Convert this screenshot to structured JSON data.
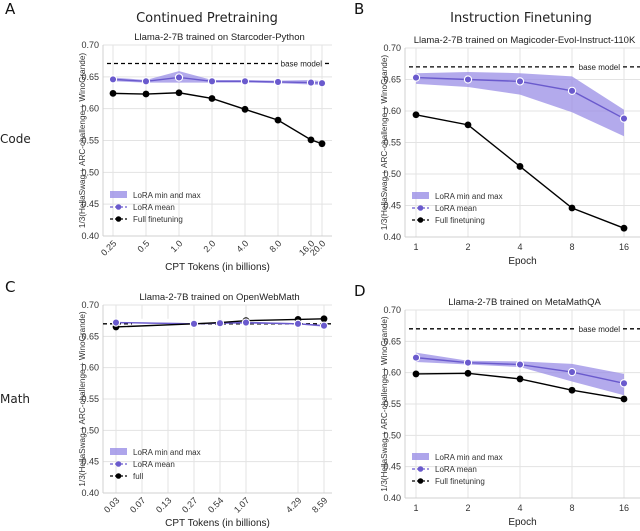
{
  "figure": {
    "row_labels": [
      "Code",
      "Math"
    ],
    "column_titles": [
      "Continued Pretraining",
      "Instruction Finetuning"
    ],
    "panel_letters": [
      "A",
      "B",
      "C",
      "D"
    ],
    "colors": {
      "lora": "#6a5acd",
      "lora_band": "#9a8ee6",
      "full": "#000000",
      "grid": "#e3e3e3"
    }
  },
  "chart_data": [
    {
      "id": "A",
      "type": "line",
      "title": "Llama-2-7B trained on Starcoder-Python",
      "xlabel": "CPT Tokens (in billions)",
      "ylabel": "1/3(HellaSwag + ARC-challenge + WinoGrande)",
      "x_tick_labels": [
        "0.25",
        "0.5",
        "1.0",
        "2.0",
        "4.0",
        "8.0",
        "16.0",
        "20.0"
      ],
      "x_tick_rotated": true,
      "ylim": [
        0.4,
        0.7
      ],
      "y_ticks": [
        "0.40",
        "0.45",
        "0.50",
        "0.55",
        "0.60",
        "0.65",
        "0.70"
      ],
      "grid": true,
      "baseline": {
        "label": "base model",
        "value": 0.671
      },
      "series": [
        {
          "name": "LoRA mean",
          "values": [
            0.646,
            0.643,
            0.649,
            0.643,
            0.643,
            0.642,
            0.641,
            0.64
          ]
        },
        {
          "name": "LoRA min and max",
          "min": [
            0.643,
            0.641,
            0.641,
            0.641,
            0.641,
            0.64,
            0.638,
            0.637
          ],
          "max": [
            0.649,
            0.645,
            0.659,
            0.645,
            0.645,
            0.644,
            0.645,
            0.643
          ]
        },
        {
          "name": "Full finetuning",
          "values": [
            0.624,
            0.623,
            0.625,
            0.616,
            0.599,
            0.582,
            0.551,
            0.545
          ]
        }
      ],
      "legend": [
        "LoRA min and max",
        "LoRA mean",
        "Full finetuning"
      ],
      "legend_position": "bottom-left"
    },
    {
      "id": "B",
      "type": "line",
      "title": "Llama-2-7B trained on Magicoder-Evol-Instruct-110K",
      "xlabel": "Epoch",
      "ylabel": "1/3(HellaSwag + ARC-challenge + WinoGrande)",
      "x_tick_labels": [
        "1",
        "2",
        "4",
        "8",
        "16"
      ],
      "x_tick_rotated": false,
      "ylim": [
        0.4,
        0.7
      ],
      "y_ticks": [
        "0.40",
        "0.45",
        "0.50",
        "0.55",
        "0.60",
        "0.65",
        "0.70"
      ],
      "grid": true,
      "baseline": {
        "label": "base model",
        "value": 0.67
      },
      "series": [
        {
          "name": "LoRA mean",
          "values": [
            0.653,
            0.65,
            0.647,
            0.632,
            0.588
          ]
        },
        {
          "name": "LoRA min and max",
          "min": [
            0.643,
            0.638,
            0.626,
            0.598,
            0.56
          ],
          "max": [
            0.66,
            0.662,
            0.66,
            0.655,
            0.602
          ]
        },
        {
          "name": "Full finetuning",
          "values": [
            0.594,
            0.578,
            0.512,
            0.446,
            0.414
          ]
        }
      ],
      "legend": [
        "LoRA min and max",
        "LoRA mean",
        "Full finetuning"
      ],
      "legend_position": "bottom-left"
    },
    {
      "id": "C",
      "type": "line",
      "title": "Llama-2-7B trained on OpenWebMath",
      "xlabel": "CPT Tokens (in billions)",
      "ylabel": "1/3(HellaSwag + ARC-challenge + WinoGrande)",
      "x_tick_labels": [
        "0.03",
        "0.07",
        "0.13",
        "0.27",
        "0.54",
        "1.07",
        "4.29",
        "8.59"
      ],
      "x_tick_rotated": true,
      "ylim": [
        0.4,
        0.7
      ],
      "y_ticks": [
        "0.40",
        "0.45",
        "0.50",
        "0.55",
        "0.60",
        "0.65",
        "0.70"
      ],
      "grid": true,
      "baseline": {
        "label": "base model",
        "value": 0.67
      },
      "series": [
        {
          "name": "LoRA mean",
          "values": [
            0.672,
            null,
            null,
            0.67,
            0.671,
            0.672,
            0.67,
            0.667
          ]
        },
        {
          "name": "LoRA min and max",
          "min": [
            0.671,
            null,
            null,
            0.669,
            0.67,
            0.67,
            0.669,
            0.665
          ],
          "max": [
            0.673,
            null,
            null,
            0.671,
            0.672,
            0.673,
            0.671,
            0.668
          ]
        },
        {
          "name": "full",
          "values": [
            0.665,
            null,
            null,
            0.67,
            0.672,
            0.675,
            0.677,
            0.678
          ]
        }
      ],
      "legend": [
        "LoRA min and max",
        "LoRA mean",
        "full"
      ],
      "legend_position": "bottom-left"
    },
    {
      "id": "D",
      "type": "line",
      "title": "Llama-2-7B trained on MetaMathQA",
      "xlabel": "Epoch",
      "ylabel": "1/3(HellaSwag + ARC-challenge + WinoGrande)",
      "x_tick_labels": [
        "1",
        "2",
        "4",
        "8",
        "16"
      ],
      "x_tick_rotated": false,
      "ylim": [
        0.4,
        0.7
      ],
      "y_ticks": [
        "0.40",
        "0.45",
        "0.50",
        "0.55",
        "0.60",
        "0.65",
        "0.70"
      ],
      "grid": true,
      "baseline": {
        "label": "base model",
        "value": 0.67
      },
      "series": [
        {
          "name": "LoRA mean",
          "values": [
            0.624,
            0.616,
            0.613,
            0.601,
            0.583
          ]
        },
        {
          "name": "LoRA min and max",
          "min": [
            0.617,
            0.613,
            0.609,
            0.586,
            0.564
          ],
          "max": [
            0.632,
            0.619,
            0.618,
            0.614,
            0.598
          ]
        },
        {
          "name": "Full finetuning",
          "values": [
            0.598,
            0.599,
            0.59,
            0.572,
            0.558
          ]
        }
      ],
      "legend": [
        "LoRA min and max",
        "LoRA mean",
        "Full finetuning"
      ],
      "legend_position": "bottom-left"
    }
  ]
}
